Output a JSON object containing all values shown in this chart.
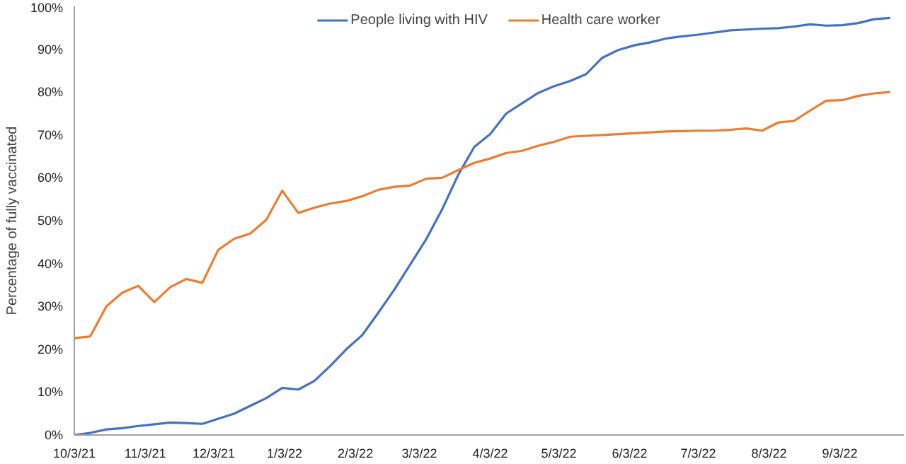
{
  "chart_data": {
    "type": "line",
    "ylabel": "Percentage of fully vaccinated",
    "x": [
      "2021-10-03",
      "2021-10-10",
      "2021-10-17",
      "2021-10-24",
      "2021-10-31",
      "2021-11-07",
      "2021-11-14",
      "2021-11-21",
      "2021-11-28",
      "2021-12-05",
      "2021-12-12",
      "2021-12-19",
      "2021-12-26",
      "2022-01-02",
      "2022-01-09",
      "2022-01-16",
      "2022-01-23",
      "2022-01-30",
      "2022-02-06",
      "2022-02-13",
      "2022-02-20",
      "2022-02-27",
      "2022-03-06",
      "2022-03-13",
      "2022-03-20",
      "2022-03-27",
      "2022-04-03",
      "2022-04-10",
      "2022-04-17",
      "2022-04-24",
      "2022-05-01",
      "2022-05-08",
      "2022-05-15",
      "2022-05-22",
      "2022-05-29",
      "2022-06-05",
      "2022-06-12",
      "2022-06-19",
      "2022-06-26",
      "2022-07-03",
      "2022-07-10",
      "2022-07-17",
      "2022-07-24",
      "2022-07-31",
      "2022-08-07",
      "2022-08-14",
      "2022-08-21",
      "2022-08-28",
      "2022-09-04",
      "2022-09-11",
      "2022-09-18",
      "2022-09-25"
    ],
    "series": [
      {
        "name": "People living with HIV",
        "color": "#4472c4",
        "values": [
          0,
          0.5,
          1.3,
          1.6,
          2.1,
          2.5,
          2.9,
          2.8,
          2.6,
          3.8,
          5.0,
          6.8,
          8.6,
          11,
          10.6,
          12.6,
          16.1,
          20,
          23.3,
          28.5,
          33.9,
          39.8,
          45.7,
          52.7,
          60.7,
          67.2,
          70.2,
          75,
          77.4,
          79.8,
          81.4,
          82.6,
          84.2,
          88,
          89.8,
          90.9,
          91.6,
          92.5,
          93,
          93.4,
          93.9,
          94.4,
          94.6,
          94.8,
          94.9,
          95.3,
          95.8,
          95.5,
          95.6,
          96.1,
          97,
          97.3
        ]
      },
      {
        "name": "Health care worker",
        "color": "#ed7d31",
        "values": [
          22.6,
          23,
          30,
          33.2,
          34.8,
          31,
          34.5,
          36.4,
          35.5,
          43.2,
          45.8,
          47,
          50.2,
          57,
          51.8,
          53,
          54,
          54.6,
          55.7,
          57.2,
          57.9,
          58.2,
          59.8,
          60,
          61.8,
          63.5,
          64.5,
          65.8,
          66.3,
          67.5,
          68.4,
          69.6,
          69.8,
          70,
          70.2,
          70.4,
          70.6,
          70.8,
          70.9,
          71,
          71,
          71.2,
          71.5,
          71.0,
          72.9,
          73.3,
          75.7,
          78,
          78.1,
          79.1,
          79.7,
          80
        ]
      }
    ],
    "xlim": [
      "2021-10-03",
      "2022-10-01"
    ],
    "xticks": [
      {
        "value": "2021-10-03",
        "label": "10/3/21"
      },
      {
        "value": "2021-11-03",
        "label": "11/3/21"
      },
      {
        "value": "2021-12-03",
        "label": "12/3/21"
      },
      {
        "value": "2022-01-03",
        "label": "1/3/22"
      },
      {
        "value": "2022-02-03",
        "label": "2/3/22"
      },
      {
        "value": "2022-03-03",
        "label": "3/3/22"
      },
      {
        "value": "2022-04-03",
        "label": "4/3/22"
      },
      {
        "value": "2022-05-03",
        "label": "5/3/22"
      },
      {
        "value": "2022-06-03",
        "label": "6/3/22"
      },
      {
        "value": "2022-07-03",
        "label": "7/3/22"
      },
      {
        "value": "2022-08-03",
        "label": "8/3/22"
      },
      {
        "value": "2022-09-03",
        "label": "9/3/22"
      }
    ],
    "ylim": [
      0,
      100
    ],
    "yticks": [
      {
        "value": 0,
        "label": "0%"
      },
      {
        "value": 10,
        "label": "10%"
      },
      {
        "value": 20,
        "label": "20%"
      },
      {
        "value": 30,
        "label": "30%"
      },
      {
        "value": 40,
        "label": "40%"
      },
      {
        "value": 50,
        "label": "50%"
      },
      {
        "value": 60,
        "label": "60%"
      },
      {
        "value": 70,
        "label": "70%"
      },
      {
        "value": 80,
        "label": "80%"
      },
      {
        "value": 90,
        "label": "90%"
      },
      {
        "value": 100,
        "label": "100%"
      }
    ],
    "grid": false,
    "legend": "top",
    "marker": "none",
    "line_style": "solid"
  }
}
